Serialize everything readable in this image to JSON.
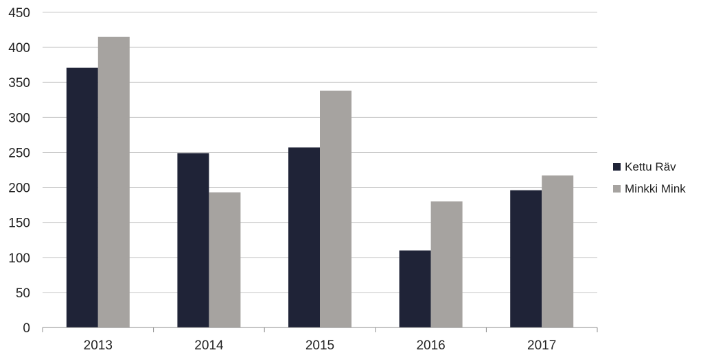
{
  "chart_data": {
    "type": "bar",
    "title": "",
    "xlabel": "",
    "ylabel": "",
    "categories": [
      "2013",
      "2014",
      "2015",
      "2016",
      "2017"
    ],
    "series": [
      {
        "name": "Kettu Räv",
        "color": "#1f2337",
        "values": [
          371,
          249,
          257,
          110,
          196
        ]
      },
      {
        "name": "Minkki Mink",
        "color": "#a6a3a0",
        "values": [
          415,
          193,
          338,
          180,
          217
        ]
      }
    ],
    "ylim": [
      0,
      450
    ],
    "yticks": [
      "0",
      "50",
      "100",
      "150",
      "200",
      "250",
      "300",
      "350",
      "400",
      "450"
    ],
    "grid": true,
    "legend_position": "right"
  }
}
